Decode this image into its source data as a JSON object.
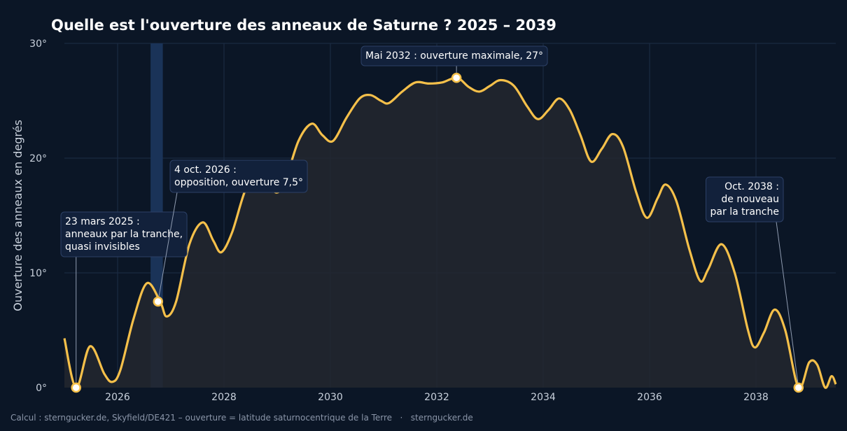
{
  "chart_data": {
    "type": "area",
    "title": "Quelle est l'ouverture des anneaux de Saturne ? 2025 – 2039",
    "ylabel": "Ouverture des anneaux en degrés",
    "xlabel": "",
    "xlim": [
      2025.0,
      2039.5
    ],
    "ylim": [
      0,
      30
    ],
    "x_ticks": [
      2026,
      2028,
      2030,
      2032,
      2034,
      2036,
      2038
    ],
    "x_tick_labels": [
      "2026",
      "2028",
      "2030",
      "2032",
      "2034",
      "2036",
      "2038"
    ],
    "y_ticks": [
      0,
      10,
      20,
      30
    ],
    "y_tick_labels": [
      "0°",
      "10°",
      "20°",
      "30°"
    ],
    "grid": true,
    "line_color": "#f5c04a",
    "fill_color": "#23272f",
    "highlight_band": {
      "x_start": 2026.62,
      "x_end": 2026.85,
      "color": "#1a3358"
    },
    "series": [
      {
        "values": [
          [
            2025.0,
            4.3
          ],
          [
            2025.22,
            0.0
          ],
          [
            2025.48,
            3.6
          ],
          [
            2025.75,
            1.2
          ],
          [
            2025.9,
            0.5
          ],
          [
            2026.05,
            1.5
          ],
          [
            2026.3,
            6.0
          ],
          [
            2026.55,
            9.1
          ],
          [
            2026.8,
            7.5
          ],
          [
            2026.92,
            6.2
          ],
          [
            2027.1,
            7.5
          ],
          [
            2027.35,
            12.5
          ],
          [
            2027.6,
            14.4
          ],
          [
            2027.8,
            12.8
          ],
          [
            2027.95,
            11.8
          ],
          [
            2028.15,
            13.5
          ],
          [
            2028.4,
            17.2
          ],
          [
            2028.65,
            19.0
          ],
          [
            2028.8,
            18.2
          ],
          [
            2028.98,
            17.0
          ],
          [
            2029.15,
            18.0
          ],
          [
            2029.4,
            21.5
          ],
          [
            2029.65,
            23.0
          ],
          [
            2029.85,
            22.0
          ],
          [
            2030.05,
            21.5
          ],
          [
            2030.3,
            23.5
          ],
          [
            2030.55,
            25.2
          ],
          [
            2030.75,
            25.5
          ],
          [
            2030.95,
            25.0
          ],
          [
            2031.1,
            24.8
          ],
          [
            2031.35,
            25.8
          ],
          [
            2031.6,
            26.6
          ],
          [
            2031.85,
            26.5
          ],
          [
            2032.1,
            26.6
          ],
          [
            2032.38,
            27.0
          ],
          [
            2032.6,
            26.2
          ],
          [
            2032.8,
            25.8
          ],
          [
            2033.0,
            26.3
          ],
          [
            2033.2,
            26.8
          ],
          [
            2033.45,
            26.3
          ],
          [
            2033.7,
            24.5
          ],
          [
            2033.9,
            23.4
          ],
          [
            2034.1,
            24.2
          ],
          [
            2034.3,
            25.2
          ],
          [
            2034.5,
            24.2
          ],
          [
            2034.7,
            22.0
          ],
          [
            2034.9,
            19.7
          ],
          [
            2035.1,
            20.8
          ],
          [
            2035.3,
            22.1
          ],
          [
            2035.5,
            21.0
          ],
          [
            2035.75,
            17.0
          ],
          [
            2035.95,
            14.8
          ],
          [
            2036.15,
            16.5
          ],
          [
            2036.3,
            17.7
          ],
          [
            2036.5,
            16.3
          ],
          [
            2036.75,
            12.0
          ],
          [
            2036.95,
            9.3
          ],
          [
            2037.1,
            10.3
          ],
          [
            2037.35,
            12.5
          ],
          [
            2037.6,
            10.0
          ],
          [
            2037.85,
            5.0
          ],
          [
            2037.98,
            3.5
          ],
          [
            2038.15,
            4.8
          ],
          [
            2038.35,
            6.8
          ],
          [
            2038.55,
            5.0
          ],
          [
            2038.8,
            0.0
          ],
          [
            2039.0,
            2.2
          ],
          [
            2039.15,
            2.0
          ],
          [
            2039.3,
            0.0
          ],
          [
            2039.42,
            1.0
          ],
          [
            2039.5,
            0.3
          ]
        ]
      }
    ],
    "annotations": [
      {
        "x": 2025.22,
        "y": 0.0,
        "align": "left",
        "lines": [
          "23 mars 2025 :",
          "anneaux par la tranche,",
          "quasi invisibles"
        ]
      },
      {
        "x": 2026.76,
        "y": 7.5,
        "align": "left",
        "lines": [
          "4 oct. 2026 :",
          "opposition, ouverture 7,5°"
        ]
      },
      {
        "x": 2032.37,
        "y": 27.0,
        "align": "left",
        "lines": [
          "Mai 2032 : ouverture maximale, 27°"
        ]
      },
      {
        "x": 2038.8,
        "y": 0.0,
        "align": "right",
        "lines": [
          "Oct. 2038 :",
          "de nouveau",
          "par la tranche"
        ]
      }
    ],
    "footer": "Calcul : sterngucker.de, Skyfield/DE421 – ouverture = latitude saturnocentrique de la Terre   ·   sterngucker.de"
  }
}
